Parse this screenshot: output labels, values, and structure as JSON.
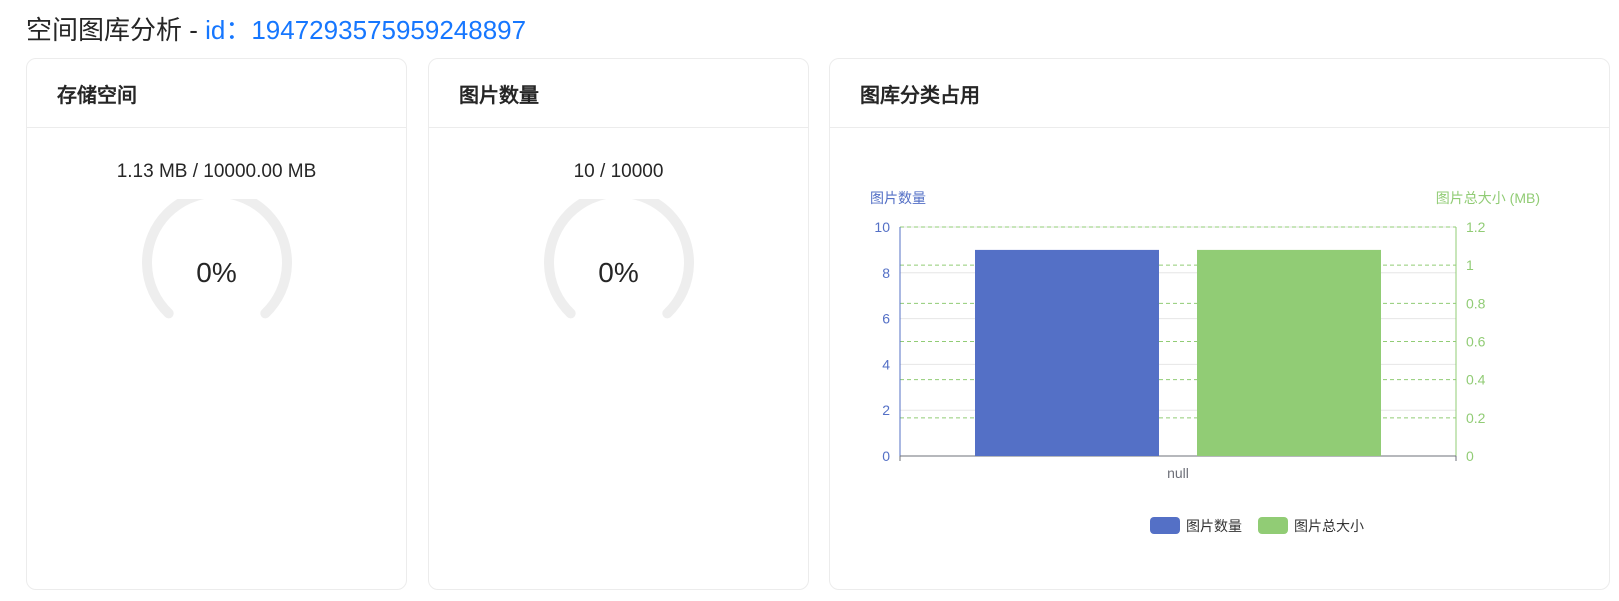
{
  "page": {
    "title_prefix": "空间图库分析 - ",
    "title_id": "id：1947293575959248897"
  },
  "storage_card": {
    "title": "存储空间",
    "usage": "1.13 MB / 10000.00 MB",
    "percent_label": "0%",
    "percent_value": 0
  },
  "count_card": {
    "title": "图片数量",
    "usage": "10 / 10000",
    "percent_label": "0%",
    "percent_value": 0
  },
  "category_card": {
    "title": "图库分类占用"
  },
  "colors": {
    "blue_series": "#5470c6",
    "green_series": "#91cc75",
    "gauge_track": "#eeeeee",
    "title_id": "#1677ff"
  },
  "chart_data": {
    "type": "bar",
    "categories": [
      "null"
    ],
    "series": [
      {
        "name": "图片数量",
        "axis": "left",
        "values": [
          9
        ]
      },
      {
        "name": "图片总大小",
        "axis": "right",
        "values": [
          1.08
        ]
      }
    ],
    "y_left": {
      "label": "图片数量",
      "min": 0,
      "max": 10,
      "ticks": [
        "0",
        "2",
        "4",
        "6",
        "8",
        "10"
      ]
    },
    "y_right": {
      "label": "图片总大小 (MB)",
      "min": 0,
      "max": 1.2,
      "ticks": [
        "0",
        "0.2",
        "0.4",
        "0.6",
        "0.8",
        "1",
        "1.2"
      ]
    },
    "legend": [
      "图片数量",
      "图片总大小"
    ],
    "legend_position": "bottom-center",
    "grid": true
  }
}
